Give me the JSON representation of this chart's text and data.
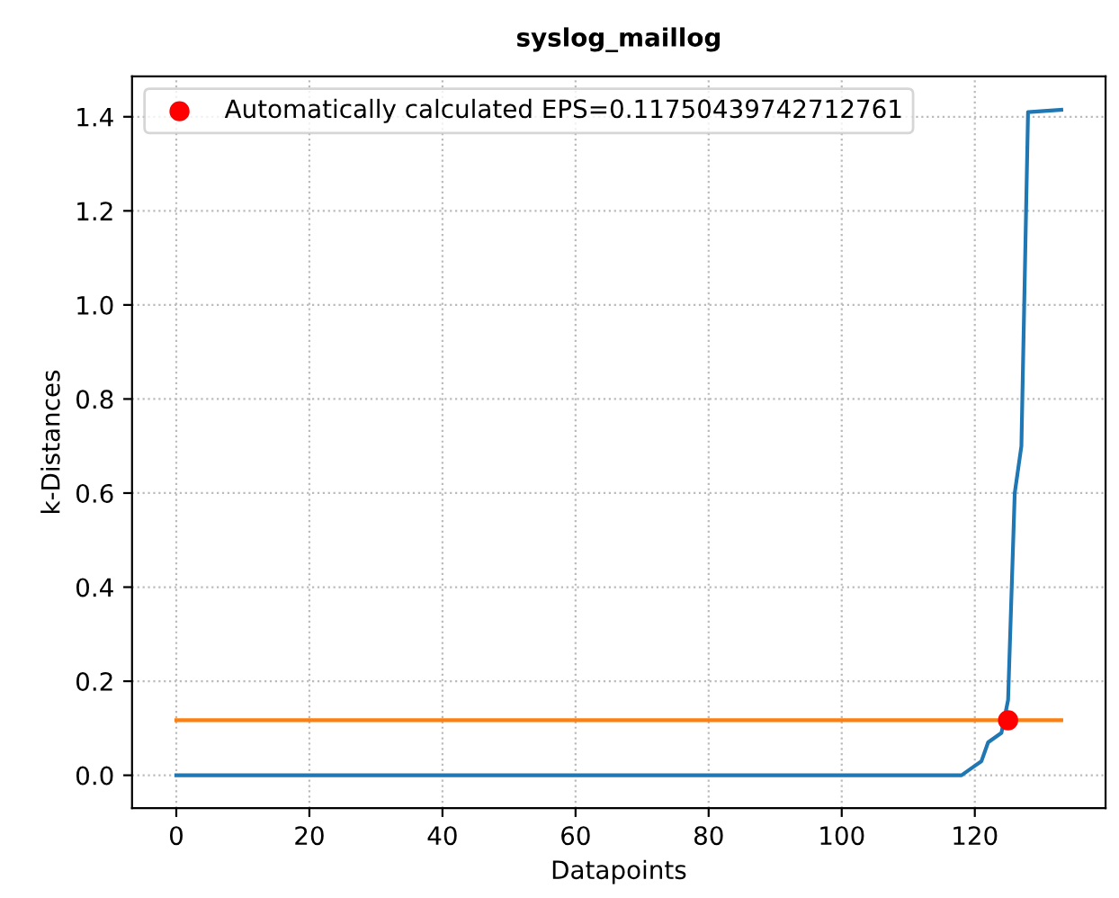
{
  "chart_data": {
    "type": "line",
    "title": "syslog_maillog",
    "xlabel": "Datapoints",
    "ylabel": "k-Distances",
    "xlim": [
      -6.65,
      139.65
    ],
    "xticks": [
      0,
      20,
      40,
      60,
      80,
      100,
      120
    ],
    "ylim": [
      -0.07,
      1.486
    ],
    "yticks": [
      {
        "value": 0,
        "label": "0.0"
      },
      0.2,
      0.4,
      0.6,
      0.8,
      {
        "value": 1,
        "label": "1.0"
      },
      1.2,
      1.4
    ],
    "grid": true,
    "legend": "top left",
    "series": [
      {
        "color": "#1f77b4",
        "x": [
          0,
          118,
          119,
          120,
          121,
          122,
          123,
          124,
          125,
          126,
          127,
          128,
          133
        ],
        "values": [
          0,
          0,
          0.01,
          0.02,
          0.03,
          0.07,
          0.08,
          0.09,
          0.16,
          0.6,
          0.7,
          1.41,
          1.415
        ]
      },
      {
        "color": "#ff7f0e",
        "x": [
          0,
          133
        ],
        "values": [
          0.117,
          0.117
        ]
      },
      {
        "type": "scatter",
        "name": "Automatically calculated EPS=0.11750439742712761",
        "color": "#ff0000",
        "x": [
          125
        ],
        "values": [
          0.117
        ]
      }
    ]
  }
}
